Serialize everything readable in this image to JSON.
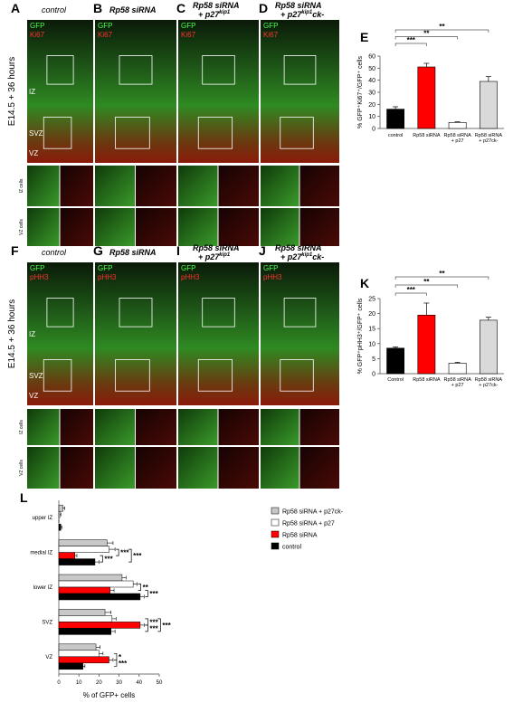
{
  "figure": {
    "rows": [
      {
        "time_label": "E14.5 + 36 hours",
        "zones": [
          "IZ",
          "SVZ",
          "VZ"
        ],
        "inset_rows": [
          "IZ cells",
          "VZ cells"
        ],
        "panels": [
          {
            "letter": "A",
            "title": "control",
            "channels": [
              "GFP",
              "Ki67"
            ]
          },
          {
            "letter": "B",
            "title": "Rp58 siRNA",
            "channels": [
              "GFP",
              "Ki67"
            ]
          },
          {
            "letter": "C",
            "title": "Rp58 siRNA",
            "title2": "+ p27",
            "sup": "kip1",
            "channels": [
              "GFP",
              "Ki67"
            ]
          },
          {
            "letter": "D",
            "title": "Rp58 siRNA",
            "title2": "+ p27",
            "sup": "kip1",
            "after": "ck-",
            "channels": [
              "GFP",
              "Ki67"
            ]
          }
        ]
      },
      {
        "time_label": "E14.5 + 36 hours",
        "zones": [
          "IZ",
          "SVZ",
          "VZ"
        ],
        "inset_rows": [
          "IZ cells",
          "VZ cells"
        ],
        "panels": [
          {
            "letter": "F",
            "title": "control",
            "channels": [
              "GFP",
              "pHH3"
            ]
          },
          {
            "letter": "G",
            "title": "Rp58 siRNA",
            "channels": [
              "GFP",
              "pHH3"
            ]
          },
          {
            "letter": "I",
            "title": "Rp58 siRNA",
            "title2": "+ p27",
            "sup": "kip1",
            "channels": [
              "GFP",
              "pHH3"
            ]
          },
          {
            "letter": "J",
            "title": "Rp58 siRNA",
            "title2": "+ p27",
            "sup": "kip1",
            "after": "ck-",
            "channels": [
              "GFP",
              "pHH3"
            ]
          }
        ]
      }
    ]
  },
  "chart_data": [
    {
      "type": "bar",
      "letter": "E",
      "ylabel": "% GFP⁺Ki67⁺/GFP⁺ cells",
      "categories": [
        "control",
        "Rp58 siRNA",
        "Rp58 siRNA + p27",
        "Rp58 siRNA + p27ck-"
      ],
      "values": [
        16,
        51,
        5,
        39
      ],
      "errors": [
        2,
        3,
        0.5,
        4
      ],
      "colors": [
        "#000000",
        "#ff0000",
        "#ffffff",
        "#d9d9d9"
      ],
      "ylim": [
        0,
        60
      ],
      "yticks": [
        0,
        10,
        20,
        30,
        40,
        50,
        60
      ],
      "significance": [
        "***",
        "**",
        "**"
      ]
    },
    {
      "type": "bar",
      "letter": "K",
      "ylabel": "% GFP⁺pHH3⁺/GFP⁺ cells",
      "categories": [
        "Control",
        "Rp58 siRNA",
        "Rp58 siRNA + p27",
        "Rp58 siRNA + p27ck-"
      ],
      "values": [
        8.5,
        19.5,
        3.5,
        17.8
      ],
      "errors": [
        0.4,
        4,
        0.3,
        1
      ],
      "colors": [
        "#000000",
        "#ff0000",
        "#ffffff",
        "#d9d9d9"
      ],
      "ylim": [
        0,
        25
      ],
      "yticks": [
        0,
        5,
        10,
        15,
        20,
        25
      ],
      "significance": [
        "***",
        "**",
        "**"
      ]
    },
    {
      "type": "hbar",
      "letter": "L",
      "xlabel": "% of GFP+ cells",
      "categories": [
        "upper IZ",
        "medial IZ",
        "lower IZ",
        "SVZ",
        "VZ"
      ],
      "series": [
        {
          "name": "Rp58 siRNA + p27ck-",
          "color": "#c8c8c8",
          "values": [
            2,
            24,
            31.5,
            23,
            18.5
          ],
          "errors": [
            1,
            3,
            2,
            3,
            2
          ]
        },
        {
          "name": "Rp58 siRNA + p27",
          "color": "#ffffff",
          "values": [
            0.5,
            25,
            37,
            26.5,
            20
          ],
          "errors": [
            0.5,
            3,
            2,
            2,
            2
          ]
        },
        {
          "name": "Rp58 siRNA",
          "color": "#ff0000",
          "values": [
            0,
            8,
            25.5,
            40.5,
            25
          ],
          "errors": [
            0,
            1,
            2,
            2,
            2
          ]
        },
        {
          "name": "control",
          "color": "#000000",
          "values": [
            1,
            18,
            40.5,
            26,
            12
          ],
          "errors": [
            0.5,
            2,
            2,
            2,
            1
          ]
        }
      ],
      "xlim": [
        0,
        50
      ],
      "xticks": [
        0,
        10,
        20,
        30,
        40,
        50
      ],
      "significance": [
        [],
        [
          "***",
          "***",
          "***"
        ],
        [
          "**",
          "***"
        ],
        [
          "***",
          "***",
          "***"
        ],
        [
          "*",
          "***"
        ]
      ]
    }
  ]
}
